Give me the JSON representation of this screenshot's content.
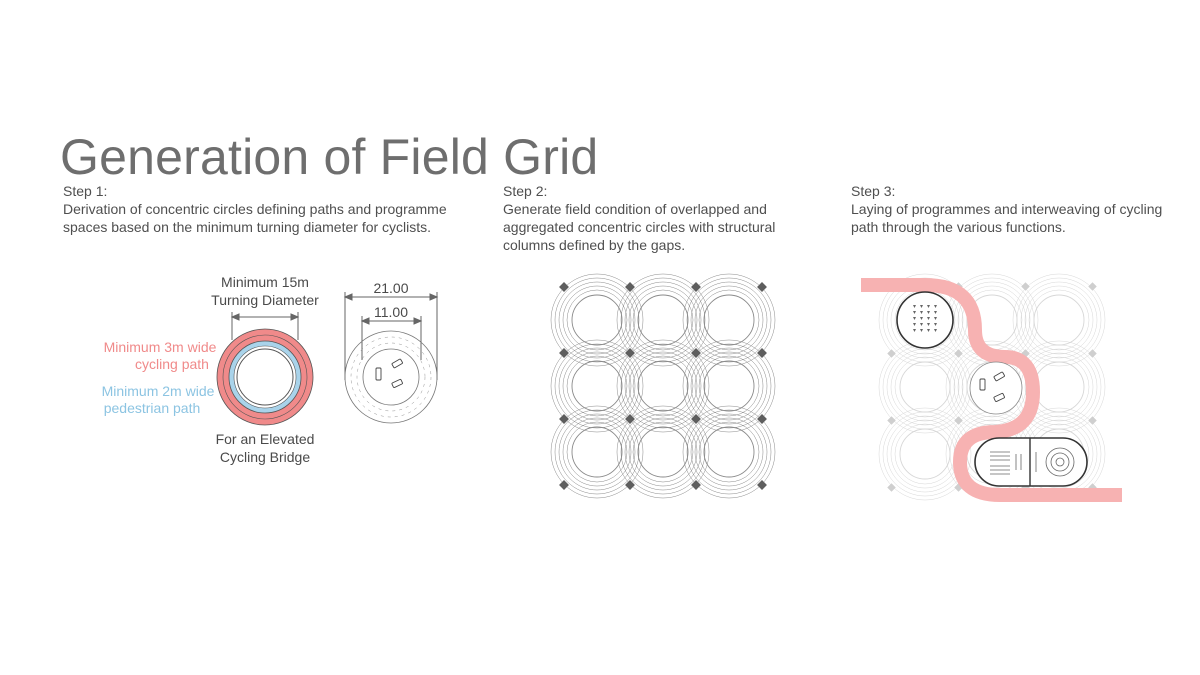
{
  "title": "Generation of Field Grid",
  "steps": [
    {
      "heading": "Step 1:",
      "text": "Derivation of concentric circles defining paths and programme spaces based on the minimum turning diameter for cyclists."
    },
    {
      "heading": "Step 2:",
      "text": "Generate field condition of overlapped and aggregated concentric circles with structural columns defined by the gaps."
    },
    {
      "heading": "Step 3:",
      "text": "Laying of programmes and interweaving of cycling path through the various functions."
    }
  ],
  "diagram1": {
    "turning_line1": "Minimum 15m",
    "turning_line2": "Turning Diameter",
    "cycling_line1": "Minimum 3m wide",
    "cycling_line2": "cycling path",
    "pedestrian_line1": "Minimum 2m wide",
    "pedestrian_line2": "pedestrian path",
    "bridge_line1": "For an Elevated",
    "bridge_line2": "Cycling Bridge",
    "dim_outer": "21.00",
    "dim_inner": "11.00"
  },
  "colors": {
    "cycling": "#f08a8a",
    "pedestrian": "#a9d3ea",
    "lines": "#9a9a9a",
    "column": "#606060",
    "path_overlay": "#f7b2b2"
  }
}
